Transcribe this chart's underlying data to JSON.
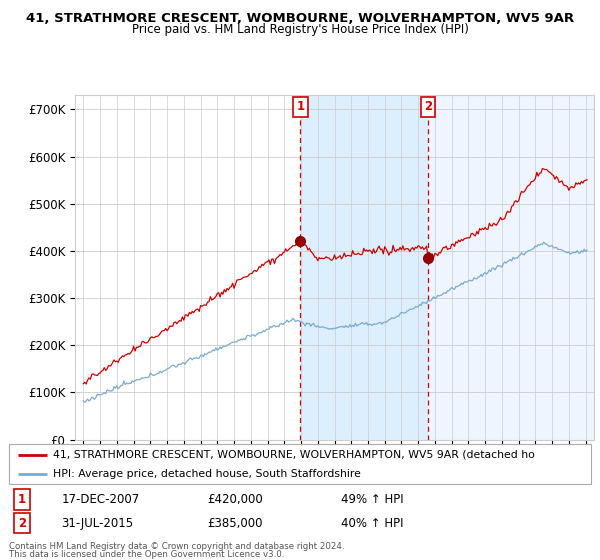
{
  "title": "41, STRATHMORE CRESCENT, WOMBOURNE, WOLVERHAMPTON, WV5 9AR",
  "subtitle": "Price paid vs. HM Land Registry's House Price Index (HPI)",
  "transaction1_date": "17-DEC-2007",
  "transaction1_price": 420000,
  "transaction1_hpi": "49% ↑ HPI",
  "transaction1_label": "1",
  "transaction1_year": 2007.96,
  "transaction1_value": 420000,
  "transaction2_date": "31-JUL-2015",
  "transaction2_price": 385000,
  "transaction2_hpi": "40% ↑ HPI",
  "transaction2_label": "2",
  "transaction2_year": 2015.58,
  "transaction2_value": 385000,
  "ylabel_ticks": [
    0,
    100000,
    200000,
    300000,
    400000,
    500000,
    600000,
    700000
  ],
  "ylabel_labels": [
    "£0",
    "£100K",
    "£200K",
    "£300K",
    "£400K",
    "£500K",
    "£600K",
    "£700K"
  ],
  "xlim": [
    1994.5,
    2025.5
  ],
  "ylim": [
    0,
    730000
  ],
  "red_line_color": "#cc0000",
  "blue_line_color": "#7aabcf",
  "shade_color_mid": "#ddeeff",
  "shade_color_right": "#eef5ff",
  "vline_color": "#cc0000",
  "legend_red_label": "41, STRATHMORE CRESCENT, WOMBOURNE, WOLVERHAMPTON, WV5 9AR (detached ho",
  "legend_blue_label": "HPI: Average price, detached house, South Staffordshire",
  "footer1": "Contains HM Land Registry data © Crown copyright and database right 2024.",
  "footer2": "This data is licensed under the Open Government Licence v3.0.",
  "background_color": "#ffffff"
}
